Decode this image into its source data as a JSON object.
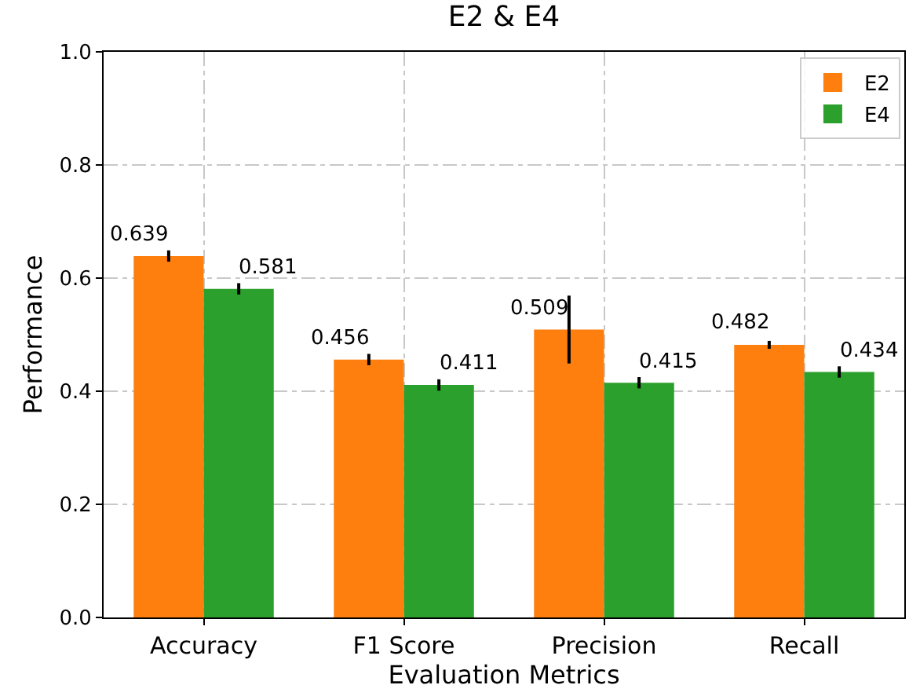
{
  "chart_data": {
    "type": "bar",
    "title": "E2 & E4",
    "xlabel": "Evaluation Metrics",
    "ylabel": "Performance",
    "categories": [
      "Accuracy",
      "F1 Score",
      "Precision",
      "Recall"
    ],
    "series": [
      {
        "name": "E2",
        "color": "#ff7f0e",
        "values": [
          0.639,
          0.456,
          0.509,
          0.482
        ],
        "errors": [
          0.01,
          0.01,
          0.06,
          0.007
        ]
      },
      {
        "name": "E4",
        "color": "#2ca02c",
        "values": [
          0.581,
          0.411,
          0.415,
          0.434
        ],
        "errors": [
          0.01,
          0.01,
          0.01,
          0.01
        ]
      }
    ],
    "ylim": [
      0,
      1
    ],
    "yticks": [
      {
        "value": 0,
        "label": "0.0"
      },
      0.2,
      0.4,
      0.6,
      0.8,
      {
        "value": 1,
        "label": "1.0"
      }
    ],
    "grid": true,
    "legend": "top right",
    "data_labels": true
  }
}
